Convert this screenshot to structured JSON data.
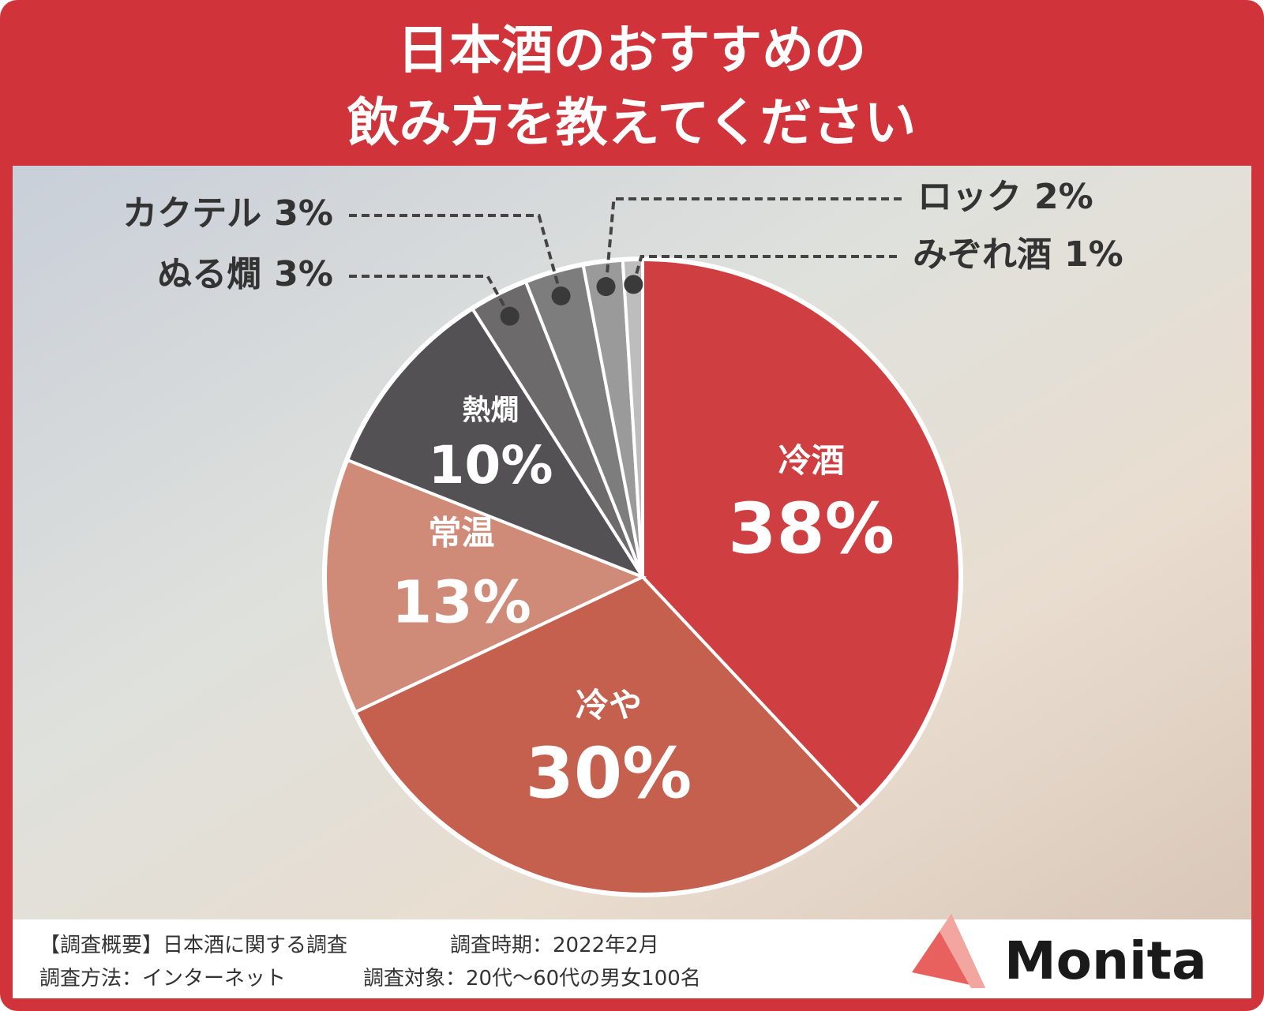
{
  "chart_data": {
    "type": "pie",
    "title": [
      "日本酒のおすすめの",
      "飲み方を教えてください"
    ],
    "categories": [
      "冷酒",
      "冷や",
      "常温",
      "熱燗",
      "ぬる燗",
      "カクテル",
      "ロック",
      "みぞれ酒"
    ],
    "values": [
      38,
      30,
      13,
      10,
      3,
      3,
      2,
      1
    ],
    "value_labels": [
      "38%",
      "30%",
      "13%",
      "10%",
      "3%",
      "3%",
      "2%",
      "1%"
    ],
    "colors": [
      "#cf3f41",
      "#c5604f",
      "#d08b78",
      "#535153",
      "#6c6a6b",
      "#7e7d7e",
      "#9b9a9b",
      "#bebdbe"
    ]
  },
  "footer": {
    "lines": [
      [
        "【調査概要】日本酒に関する調査",
        "調査時期：2022年2月"
      ],
      [
        "調査方法：インターネット",
        "調査対象：20代〜60代の男女100名"
      ]
    ]
  },
  "logo": "Monita"
}
